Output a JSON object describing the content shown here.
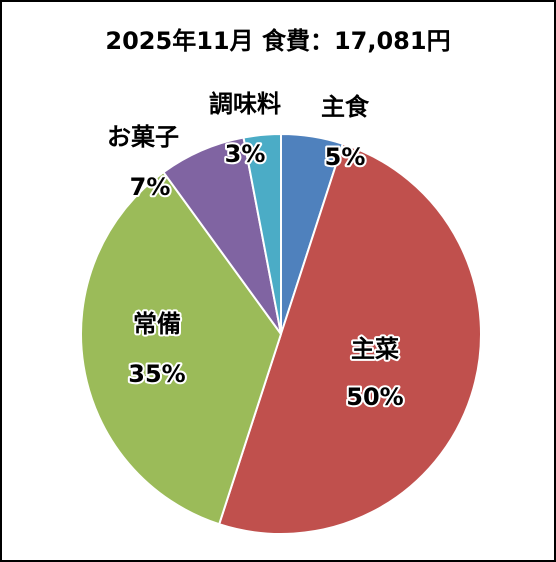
{
  "chart_data": {
    "type": "pie",
    "title": "2025年11月 食費：17,081円",
    "categories": [
      "主食",
      "主菜",
      "常備",
      "お菓子",
      "調味料"
    ],
    "values": [
      5,
      50,
      35,
      7,
      3
    ],
    "value_labels": [
      "5%",
      "50%",
      "35%",
      "7%",
      "3%"
    ],
    "colors": [
      "#4f81bd",
      "#c0504d",
      "#9bbb59",
      "#8064a2",
      "#4bacc6"
    ]
  }
}
